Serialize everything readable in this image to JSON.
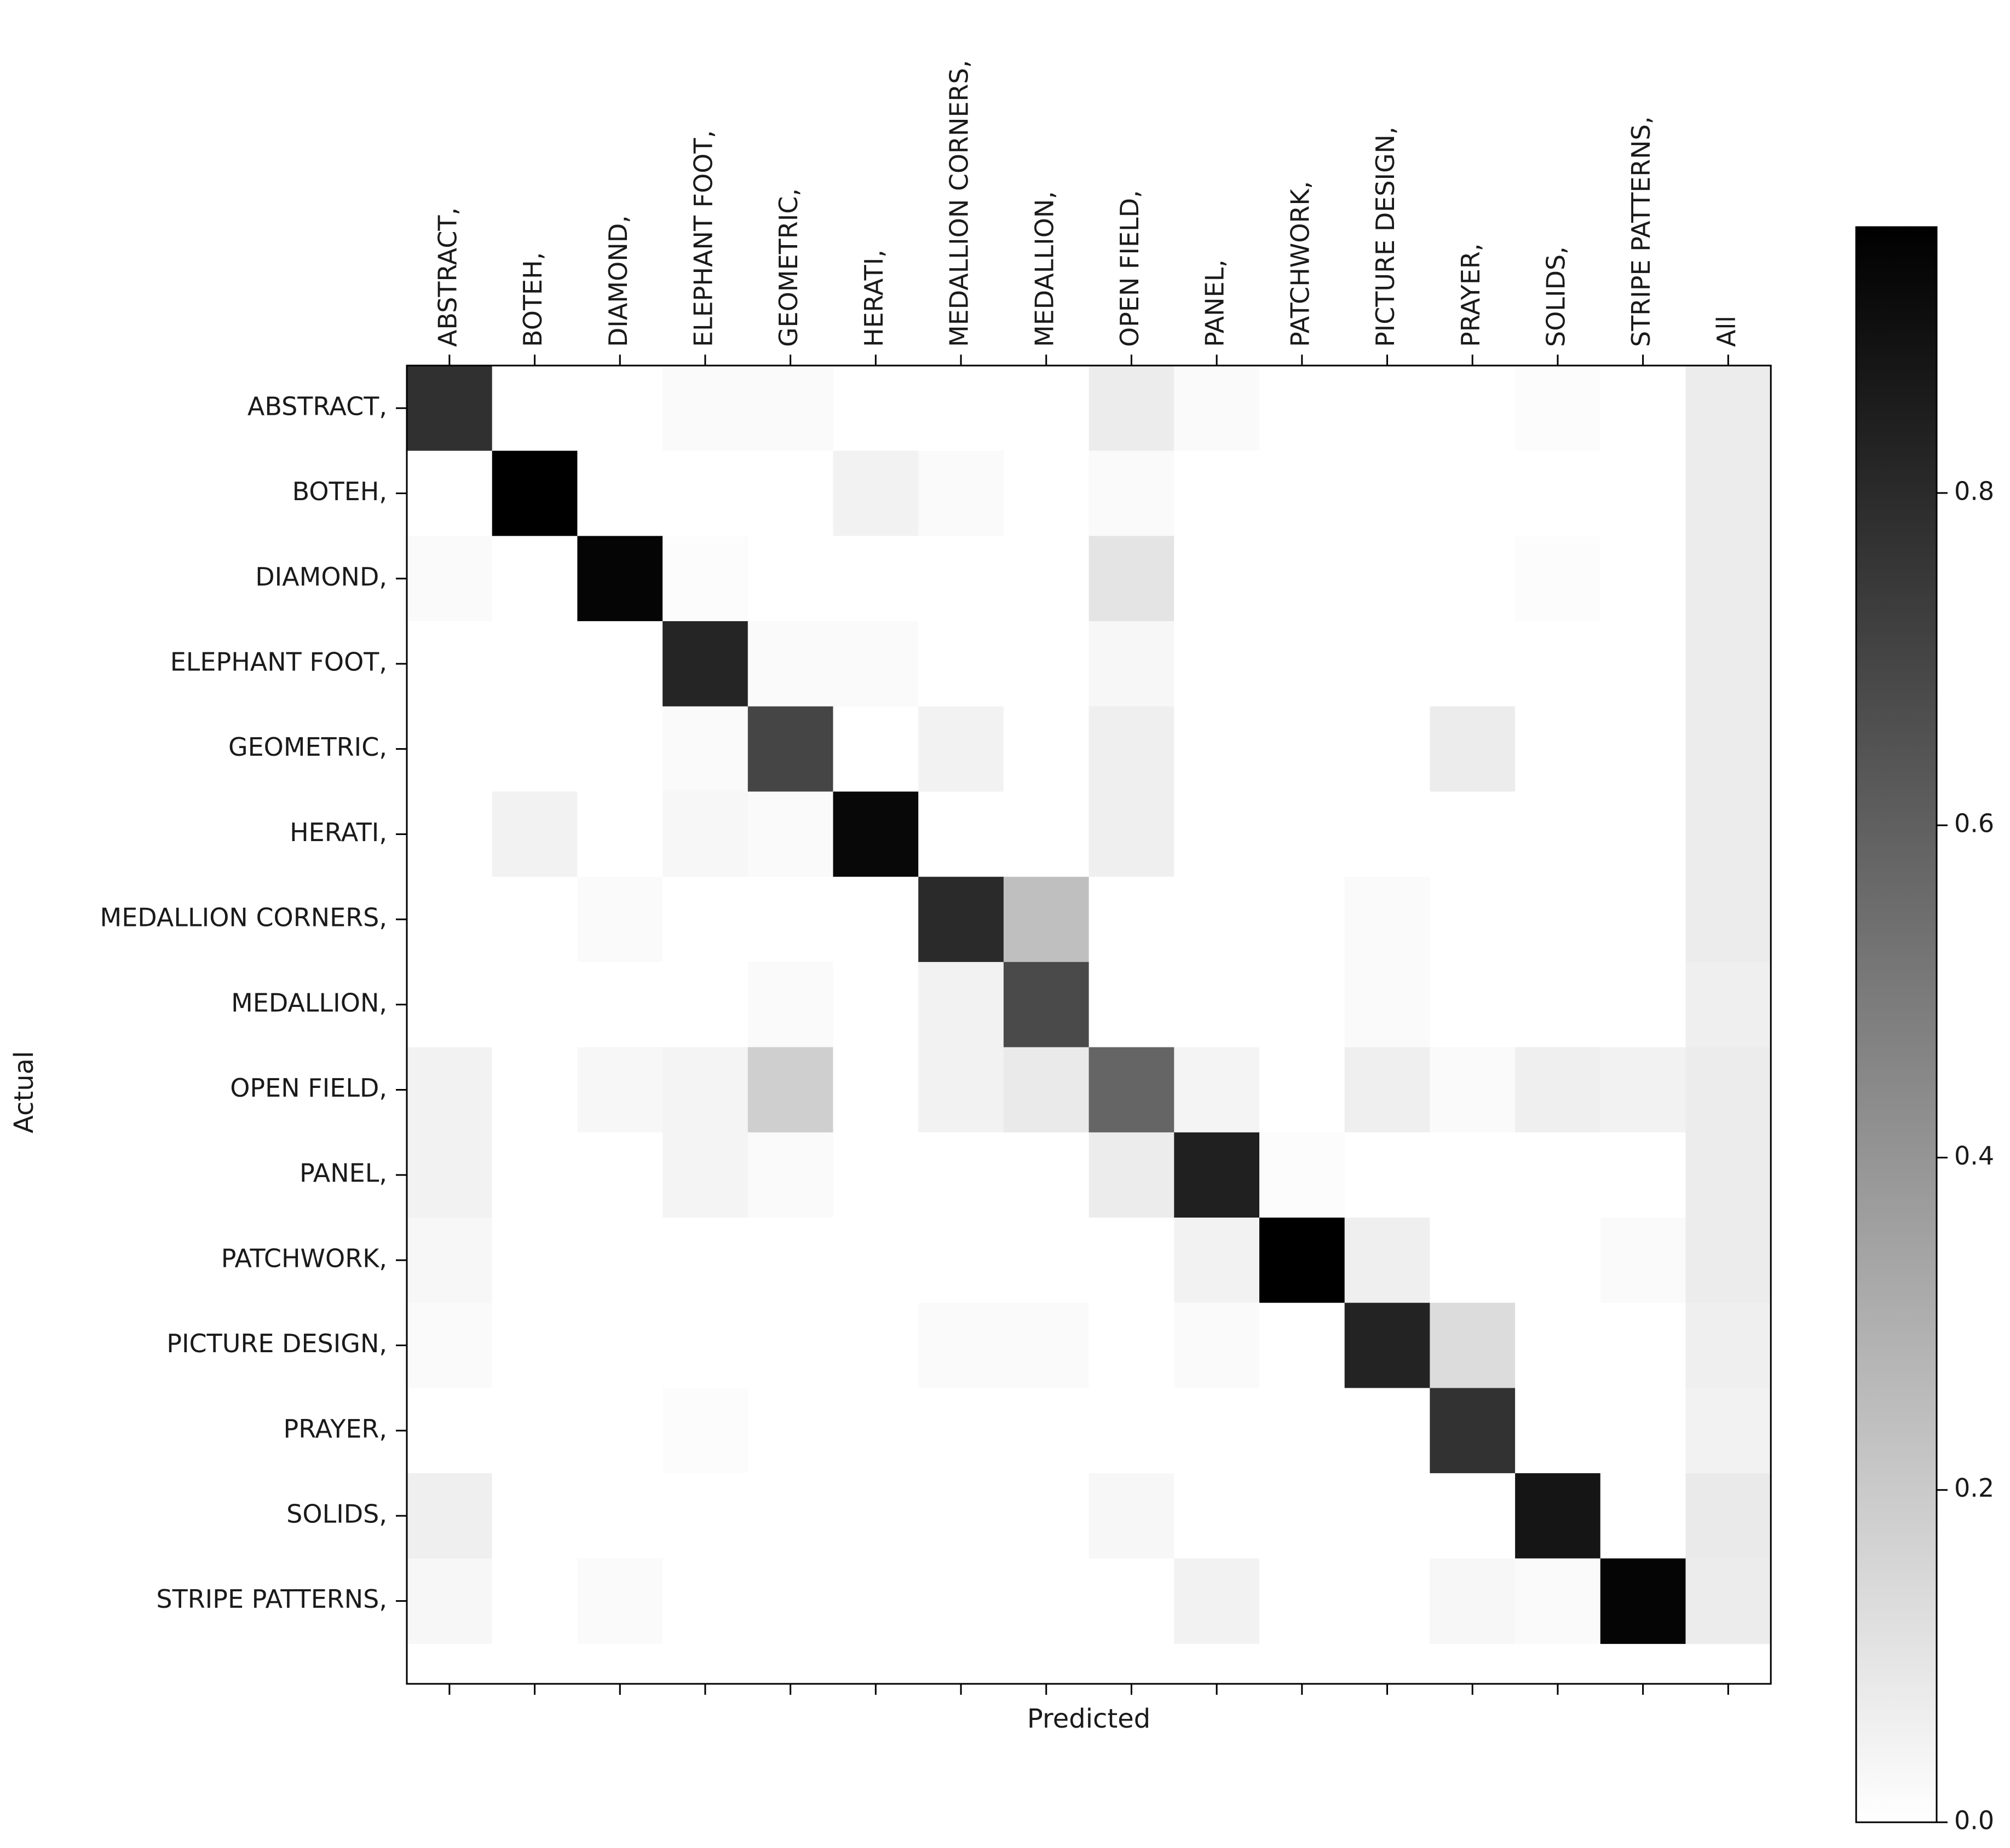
{
  "chart_data": {
    "type": "heatmap",
    "colormap": "greys",
    "xlabel": "Predicted",
    "ylabel": "Actual",
    "x_categories": [
      "ABSTRACT,",
      "BOTEH,",
      "DIAMOND,",
      "ELEPHANT FOOT,",
      "GEOMETRIC,",
      "HERATI,",
      "MEDALLION CORNERS,",
      "MEDALLION,",
      "OPEN FIELD,",
      "PANEL,",
      "PATCHWORK,",
      "PICTURE DESIGN,",
      "PRAYER,",
      "SOLIDS,",
      "STRIPE PATTERNS,",
      "All"
    ],
    "y_categories": [
      "ABSTRACT,",
      "BOTEH,",
      "DIAMOND,",
      "ELEPHANT FOOT,",
      "GEOMETRIC,",
      "HERATI,",
      "MEDALLION CORNERS,",
      "MEDALLION,",
      "OPEN FIELD,",
      "PANEL,",
      "PATCHWORK,",
      "PICTURE DESIGN,",
      "PRAYER,",
      "SOLIDS,",
      "STRIPE PATTERNS,"
    ],
    "values": [
      [
        0.78,
        0,
        0,
        0.02,
        0.02,
        0,
        0,
        0,
        0.07,
        0.02,
        0,
        0,
        0,
        0.01,
        0,
        0.07
      ],
      [
        0,
        0.97,
        0,
        0,
        0,
        0.05,
        0.02,
        0,
        0.02,
        0,
        0,
        0,
        0,
        0,
        0,
        0.07
      ],
      [
        0.02,
        0,
        0.94,
        0.01,
        0,
        0,
        0,
        0,
        0.1,
        0,
        0,
        0,
        0,
        0.01,
        0,
        0.07
      ],
      [
        0,
        0,
        0,
        0.82,
        0.02,
        0.02,
        0,
        0,
        0.03,
        0,
        0,
        0,
        0,
        0,
        0,
        0.07
      ],
      [
        0,
        0,
        0,
        0.02,
        0.7,
        0,
        0.05,
        0,
        0.06,
        0,
        0,
        0,
        0.07,
        0,
        0,
        0.07
      ],
      [
        0,
        0.05,
        0,
        0.03,
        0.02,
        0.93,
        0,
        0,
        0.06,
        0,
        0,
        0,
        0,
        0,
        0,
        0.07
      ],
      [
        0,
        0,
        0.02,
        0,
        0,
        0,
        0.8,
        0.24,
        0,
        0,
        0,
        0.02,
        0,
        0,
        0,
        0.07
      ],
      [
        0,
        0,
        0,
        0,
        0.02,
        0,
        0.05,
        0.68,
        0,
        0,
        0,
        0.02,
        0,
        0,
        0,
        0.06
      ],
      [
        0.05,
        0,
        0.03,
        0.04,
        0.18,
        0,
        0.05,
        0.08,
        0.58,
        0.04,
        0,
        0.06,
        0.02,
        0.06,
        0.05,
        0.07
      ],
      [
        0.05,
        0,
        0,
        0.04,
        0.02,
        0,
        0,
        0,
        0.07,
        0.84,
        0.01,
        0,
        0,
        0,
        0,
        0.07
      ],
      [
        0.03,
        0,
        0,
        0,
        0,
        0,
        0,
        0,
        0,
        0.05,
        1.0,
        0.06,
        0,
        0,
        0.02,
        0.07
      ],
      [
        0.02,
        0,
        0,
        0,
        0,
        0,
        0.02,
        0.02,
        0,
        0.02,
        0,
        0.83,
        0.13,
        0,
        0,
        0.06
      ],
      [
        0,
        0,
        0,
        0.01,
        0,
        0,
        0,
        0,
        0,
        0,
        0,
        0,
        0.77,
        0,
        0,
        0.05
      ],
      [
        0.06,
        0,
        0,
        0,
        0,
        0,
        0,
        0,
        0.03,
        0,
        0,
        0,
        0,
        0.88,
        0,
        0.08
      ],
      [
        0.03,
        0,
        0.02,
        0,
        0,
        0,
        0,
        0,
        0,
        0.05,
        0,
        0,
        0.03,
        0.02,
        0.94,
        0.07
      ]
    ],
    "colorbar": {
      "range": [
        0,
        0.96
      ],
      "ticks": [
        0.0,
        0.2,
        0.4,
        0.6,
        0.8
      ],
      "tick_labels": [
        "0.0",
        "0.2",
        "0.4",
        "0.6",
        "0.8"
      ]
    },
    "grid": false
  }
}
